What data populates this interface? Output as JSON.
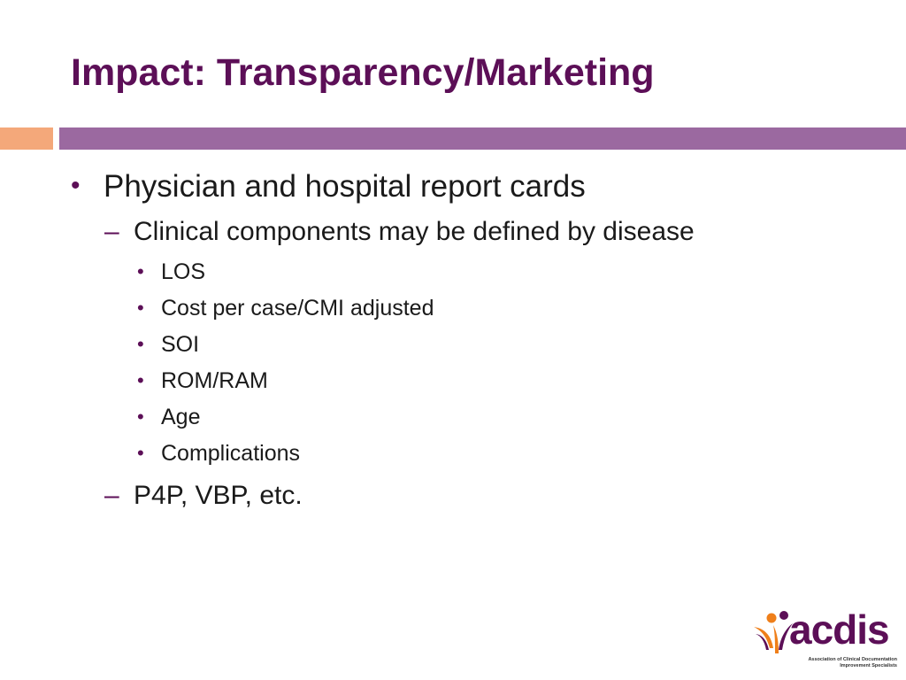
{
  "slide": {
    "title": "Impact: Transparency/Marketing"
  },
  "colors": {
    "title": "#5c0f57",
    "accent_orange": "#f4a87a",
    "accent_purple": "#9b69a0",
    "bullet_marker": "#5c0f57",
    "logo_purple": "#5c0f57",
    "logo_orange": "#ef7f1a"
  },
  "bullets": [
    {
      "marker": "•",
      "text": "Physician and hospital report cards",
      "children": [
        {
          "marker": "–",
          "text": "Clinical components may be defined by disease",
          "children": [
            {
              "marker": "•",
              "text": "LOS"
            },
            {
              "marker": "•",
              "text": "Cost per case/CMI adjusted"
            },
            {
              "marker": "•",
              "text": "SOI"
            },
            {
              "marker": "•",
              "text": "ROM/RAM"
            },
            {
              "marker": "•",
              "text": "Age"
            },
            {
              "marker": "•",
              "text": "Complications"
            }
          ]
        },
        {
          "marker": "–",
          "text": "P4P, VBP, etc."
        }
      ]
    }
  ],
  "logo": {
    "wordmark": "acdis",
    "tagline_line1": "Association of Clinical Documentation",
    "tagline_line2": "Improvement Specialists"
  }
}
